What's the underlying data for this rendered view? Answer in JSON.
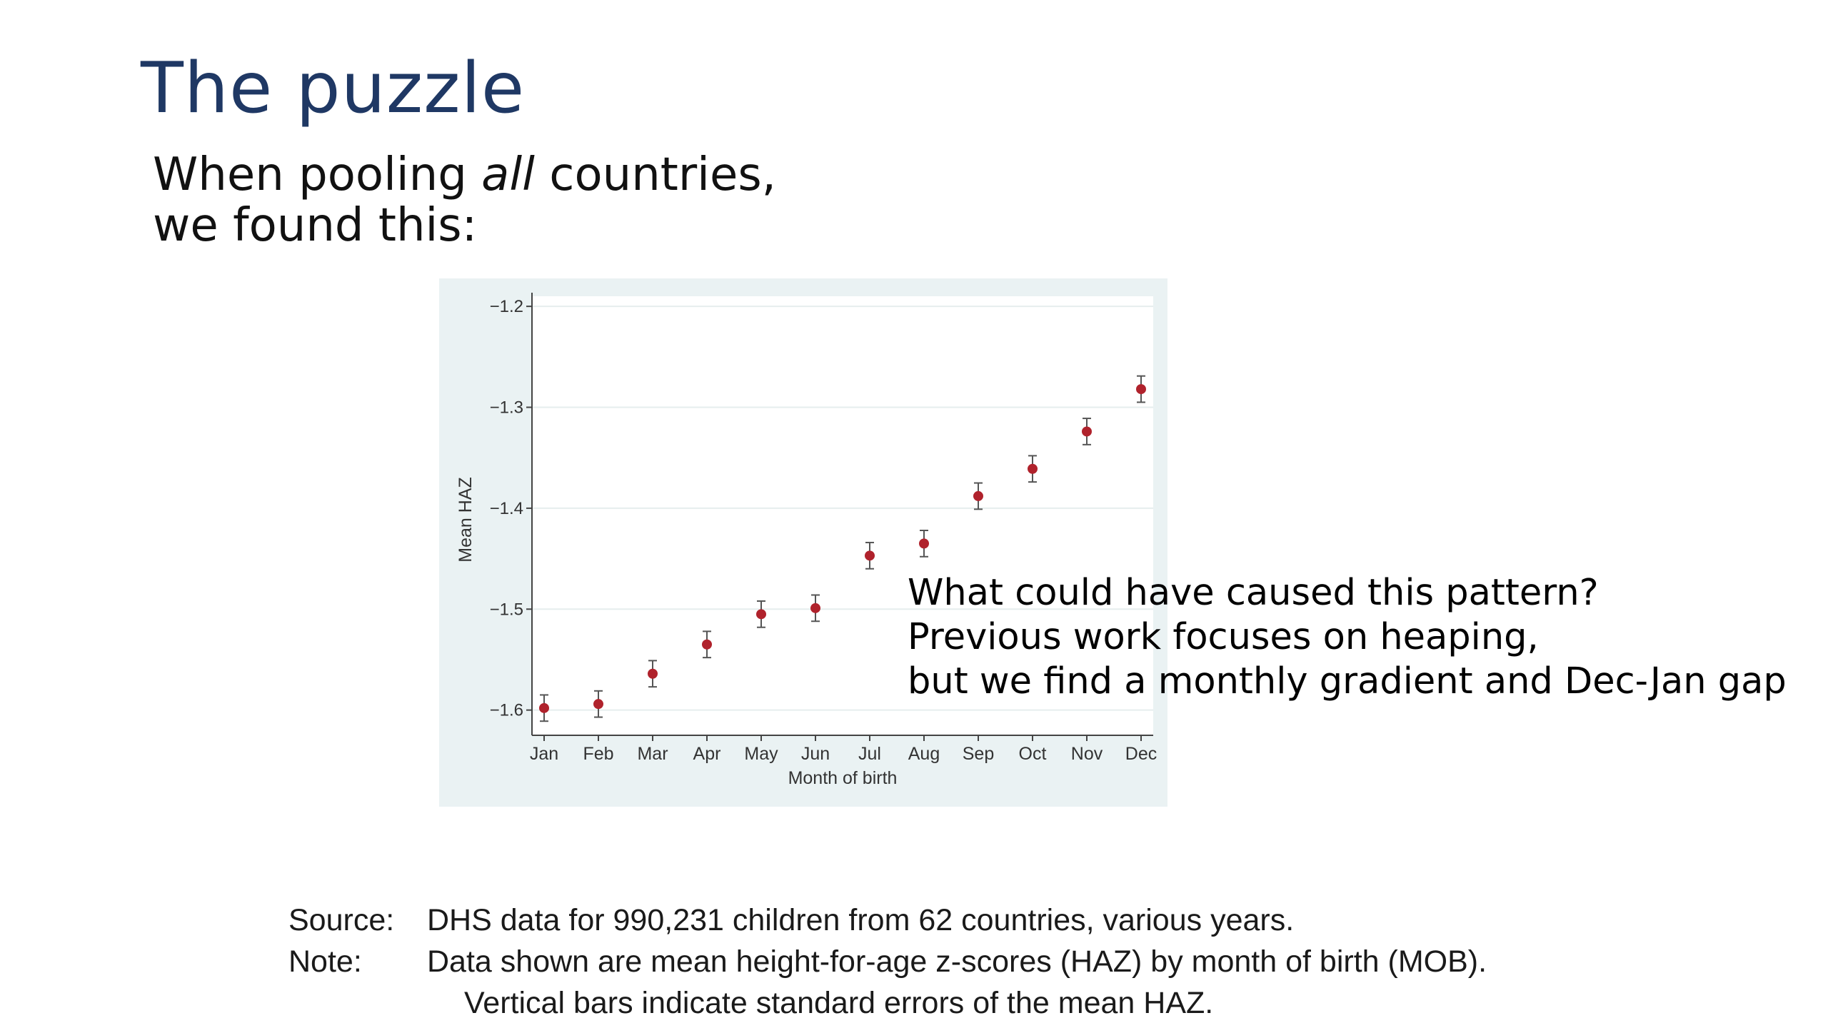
{
  "slide": {
    "title": "The puzzle",
    "subtitle_line1_pre": "When pooling ",
    "subtitle_line1_em": "all",
    "subtitle_line1_post": " countries,",
    "subtitle_line2": "we found this:"
  },
  "callout": {
    "line1": "What could have caused this pattern?",
    "line2": "Previous work focuses on heaping,",
    "line3": "but we find a monthly gradient and Dec-Jan gap"
  },
  "notes": {
    "source_label": "Source:",
    "source_text": "DHS data for 990,231 children from 62 countries, various years.",
    "note_label": "Note:",
    "note_text": "Data shown are mean height-for-age z-scores (HAZ) by month of birth (MOB).",
    "note_text2": "Vertical bars indicate standard errors of the mean HAZ."
  },
  "colors": {
    "title": "#1f3864",
    "chart_background": "#eaf2f3",
    "plot_background": "#ffffff",
    "point": "#b0222c",
    "error_bar": "#555555"
  },
  "chart_data": {
    "type": "scatter",
    "xlabel": "Month of birth",
    "ylabel": "Mean HAZ",
    "categories": [
      "Jan",
      "Feb",
      "Mar",
      "Apr",
      "May",
      "Jun",
      "Jul",
      "Aug",
      "Sep",
      "Oct",
      "Nov",
      "Dec"
    ],
    "values": [
      -1.598,
      -1.594,
      -1.564,
      -1.535,
      -1.505,
      -1.499,
      -1.447,
      -1.435,
      -1.388,
      -1.361,
      -1.324,
      -1.282
    ],
    "error_bars": [
      0.013,
      0.013,
      0.013,
      0.013,
      0.013,
      0.013,
      0.013,
      0.013,
      0.013,
      0.013,
      0.013,
      0.013
    ],
    "ylim": [
      -1.625,
      -1.19
    ],
    "yticks": [
      -1.6,
      -1.5,
      -1.4,
      -1.3,
      -1.2
    ],
    "ytick_labels": [
      "−1.6",
      "−1.5",
      "−1.4",
      "−1.3",
      "−1.2"
    ],
    "grid": true,
    "legend": "none"
  }
}
